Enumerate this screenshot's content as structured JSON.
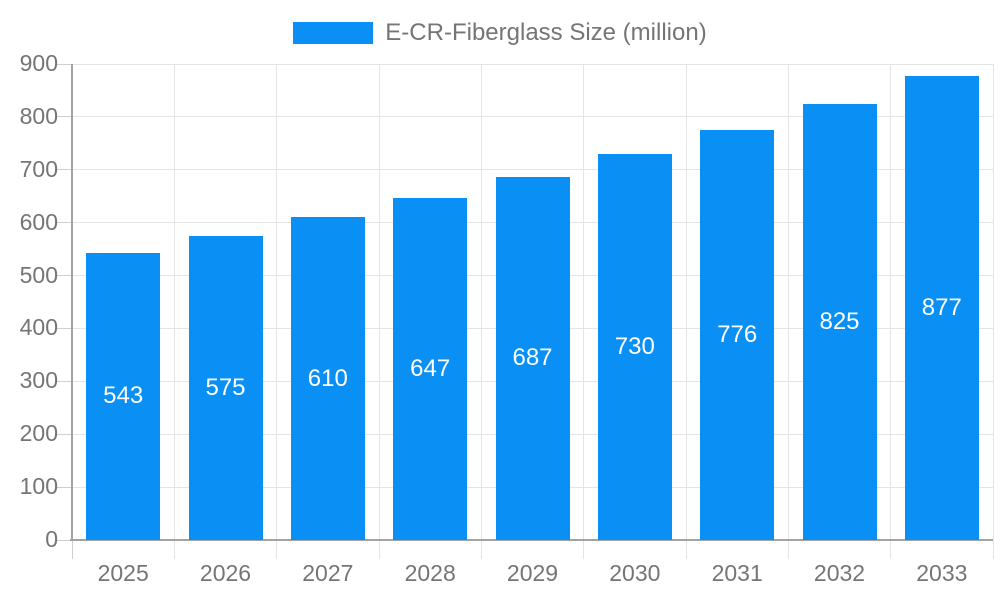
{
  "chart_data": {
    "type": "bar",
    "title": "E-CR-Fiberglass Size (million)",
    "legend_position": "top",
    "categories": [
      "2025",
      "2026",
      "2027",
      "2028",
      "2029",
      "2030",
      "2031",
      "2032",
      "2033"
    ],
    "series": [
      {
        "name": "E-CR-Fiberglass Size (million)",
        "values": [
          543,
          575,
          610,
          647,
          687,
          730,
          776,
          825,
          877
        ]
      }
    ],
    "value_labels_shown": true,
    "ylim": [
      0,
      900
    ],
    "y_tick_step": 100,
    "grid": true,
    "colors": {
      "bar": "#0a90f5",
      "value_label": "#ffffff",
      "axis_text": "#757575",
      "grid_line": "#e4e4e4",
      "axis_line": "#a3a3a3",
      "tick_line": "#cfcfcf"
    }
  }
}
